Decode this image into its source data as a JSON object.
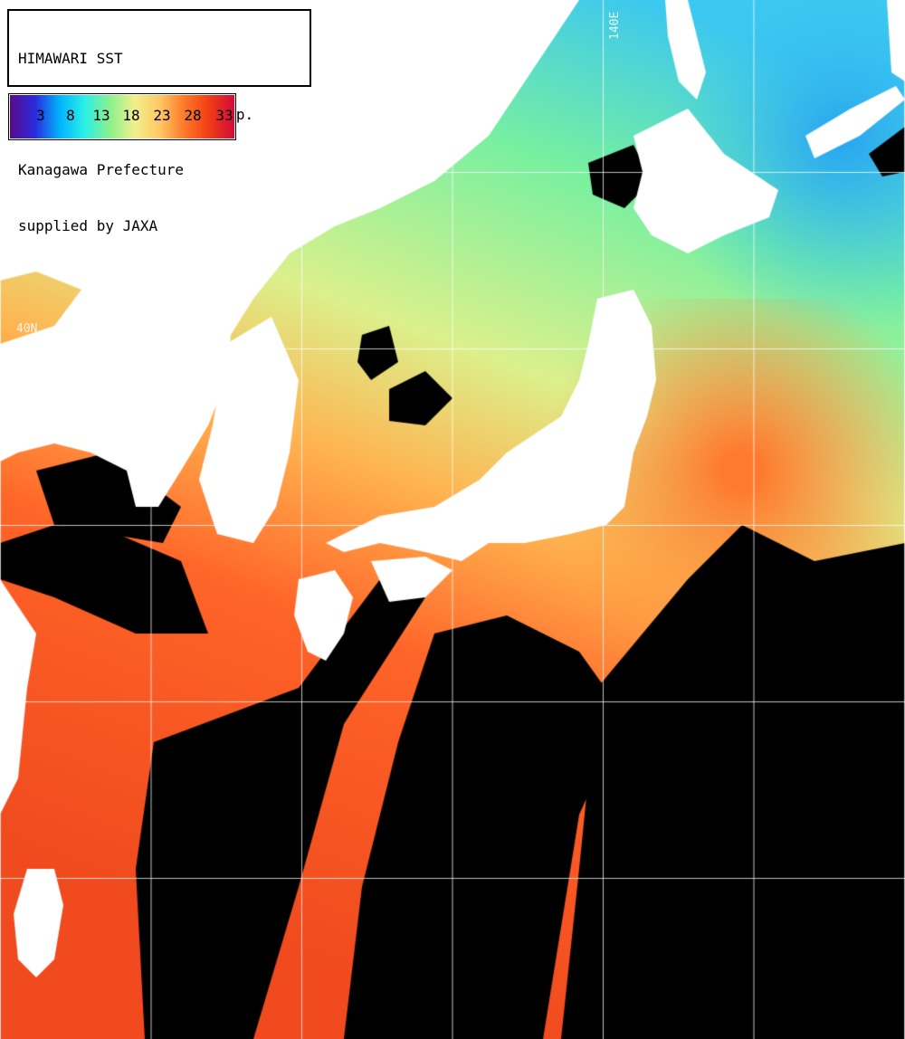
{
  "header": {
    "line1": "HIMAWARI SST",
    "line2": "2025/06/18 09(UTC) 3H Comp.",
    "line3": "Kanagawa Prefecture",
    "line4": "supplied by JAXA"
  },
  "legend": {
    "ticks": [
      "3",
      "8",
      "13",
      "18",
      "23",
      "28",
      "33"
    ],
    "gradient_stops": [
      "#5a0a8c",
      "#2a2adc",
      "#00b4ff",
      "#2af0e6",
      "#8cf08c",
      "#f0f08c",
      "#ffc864",
      "#ff7828",
      "#f03c14",
      "#d20a3c"
    ]
  },
  "map": {
    "grid_labels": {
      "meridian_140e": "140E",
      "parallel_40n": "40N"
    },
    "colors": {
      "land": "#ffffff",
      "cloud": "#000000",
      "gridline": "#ffffff",
      "cold_water": "#3cc8f0",
      "cool_water": "#78f0a0",
      "temperate_water": "#dcf08c",
      "warm_water": "#ffb450",
      "hot_water": "#ff6428"
    }
  }
}
